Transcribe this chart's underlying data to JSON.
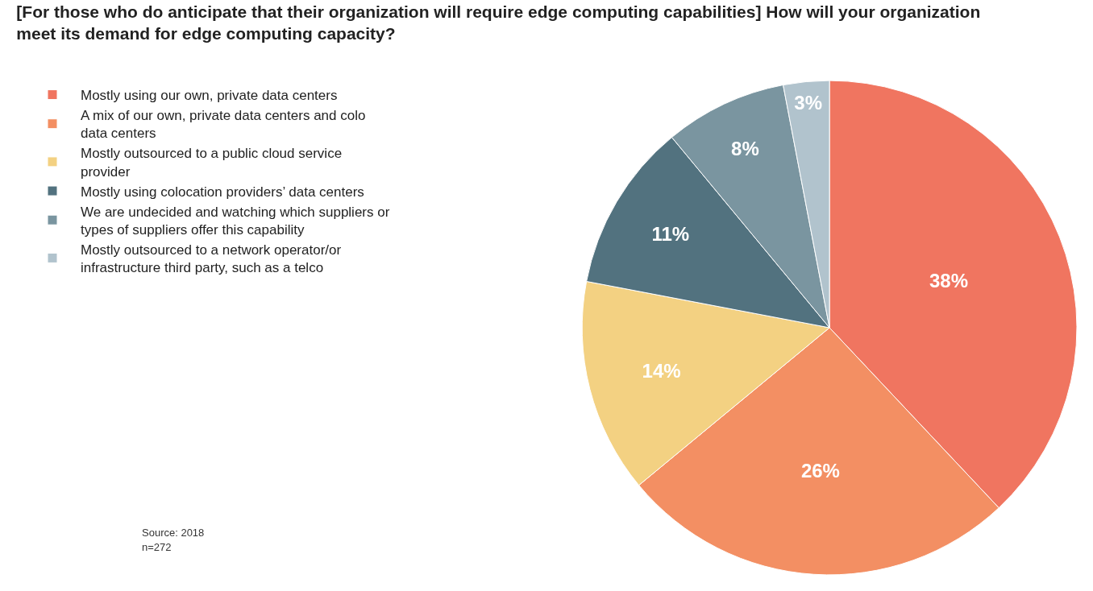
{
  "chart_data": {
    "type": "pie",
    "title": "[For those who do anticipate that their organization will require edge computing capabilities] How will your organization meet its demand for edge computing capacity?",
    "categories": [
      "Mostly using our own, private data centers",
      "A mix of our own, private data centers and colo data centers",
      "Mostly outsourced to a public cloud service provider",
      "Mostly using colocation providers’ data centers",
      "We are undecided and watching which suppliers or types of suppliers offer this capability",
      "Mostly outsourced to a network operator/or infrastructure third party, such as a telco"
    ],
    "values": [
      38,
      26,
      14,
      11,
      8,
      3
    ],
    "value_labels": [
      "38%",
      "26%",
      "14%",
      "11%",
      "8%",
      "3%"
    ],
    "colors": [
      "#f07560",
      "#f38f63",
      "#f3d182",
      "#52727f",
      "#7a95a0",
      "#b1c3cd"
    ],
    "legend": "top left",
    "annotations": [
      "Source: 2018",
      "n=272"
    ]
  }
}
